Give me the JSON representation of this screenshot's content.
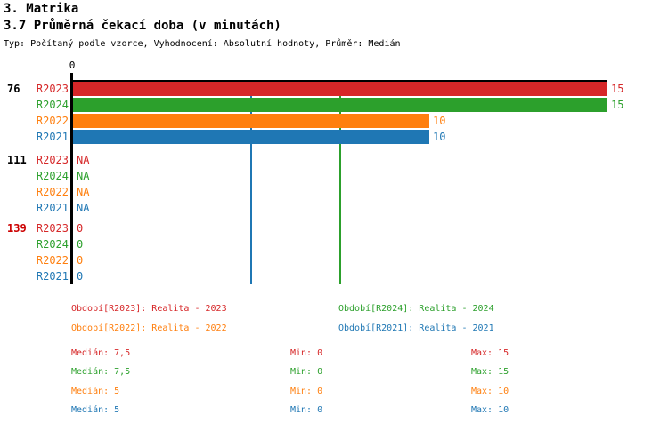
{
  "header": {
    "title": "3. Matrika",
    "subtitle": "3.7 Průměrná čekací doba (v minutách)",
    "meta": "Typ: Počítaný podle vzorce, Vyhodnocení: Absolutní hodnoty, Průměr: Medián"
  },
  "chart_data": {
    "type": "bar",
    "orientation": "horizontal",
    "title": "3.7 Průměrná čekací doba (v minutách)",
    "categories": [
      "76",
      "111",
      "139"
    ],
    "category_label_colors": [
      "#000000",
      "#000000",
      "#cc0000"
    ],
    "series": [
      {
        "name": "R2023",
        "color": "#d62728",
        "values": [
          15,
          null,
          0
        ],
        "display": [
          "15",
          "NA",
          "0"
        ]
      },
      {
        "name": "R2024",
        "color": "#2ca02c",
        "values": [
          15,
          null,
          0
        ],
        "display": [
          "15",
          "NA",
          "0"
        ]
      },
      {
        "name": "R2022",
        "color": "#ff7f0e",
        "values": [
          10,
          null,
          0
        ],
        "display": [
          "10",
          "NA",
          "0"
        ]
      },
      {
        "name": "R2021",
        "color": "#1f77b4",
        "values": [
          10,
          null,
          0
        ],
        "display": [
          "10",
          "NA",
          "0"
        ]
      }
    ],
    "xlim": [
      0,
      15
    ],
    "axis_tick_labels": [
      "0"
    ],
    "grid": false,
    "median_lines": [
      {
        "series": "R2024",
        "value": 7.5,
        "color": "#2ca02c"
      },
      {
        "series": "R2021",
        "value": 5,
        "color": "#1f77b4"
      }
    ]
  },
  "legend": {
    "items": [
      {
        "series": "R2023",
        "label": "Období[R2023]: Realita - 2023"
      },
      {
        "series": "R2024",
        "label": "Období[R2024]: Realita - 2024"
      },
      {
        "series": "R2022",
        "label": "Období[R2022]: Realita - 2022"
      },
      {
        "series": "R2021",
        "label": "Období[R2021]: Realita - 2021"
      }
    ]
  },
  "stats": {
    "rows": [
      {
        "series": "R2023",
        "median_label": "Medián:",
        "median": "7,5",
        "min_label": "Min:",
        "min": "0",
        "max_label": "Max:",
        "max": "15"
      },
      {
        "series": "R2024",
        "median_label": "Medián:",
        "median": "7,5",
        "min_label": "Min:",
        "min": "0",
        "max_label": "Max:",
        "max": "15"
      },
      {
        "series": "R2022",
        "median_label": "Medián:",
        "median": "5",
        "min_label": "Min:",
        "min": "0",
        "max_label": "Max:",
        "max": "10"
      },
      {
        "series": "R2021",
        "median_label": "Medián:",
        "median": "5",
        "min_label": "Min:",
        "min": "0",
        "max_label": "Max:",
        "max": "10"
      }
    ]
  }
}
